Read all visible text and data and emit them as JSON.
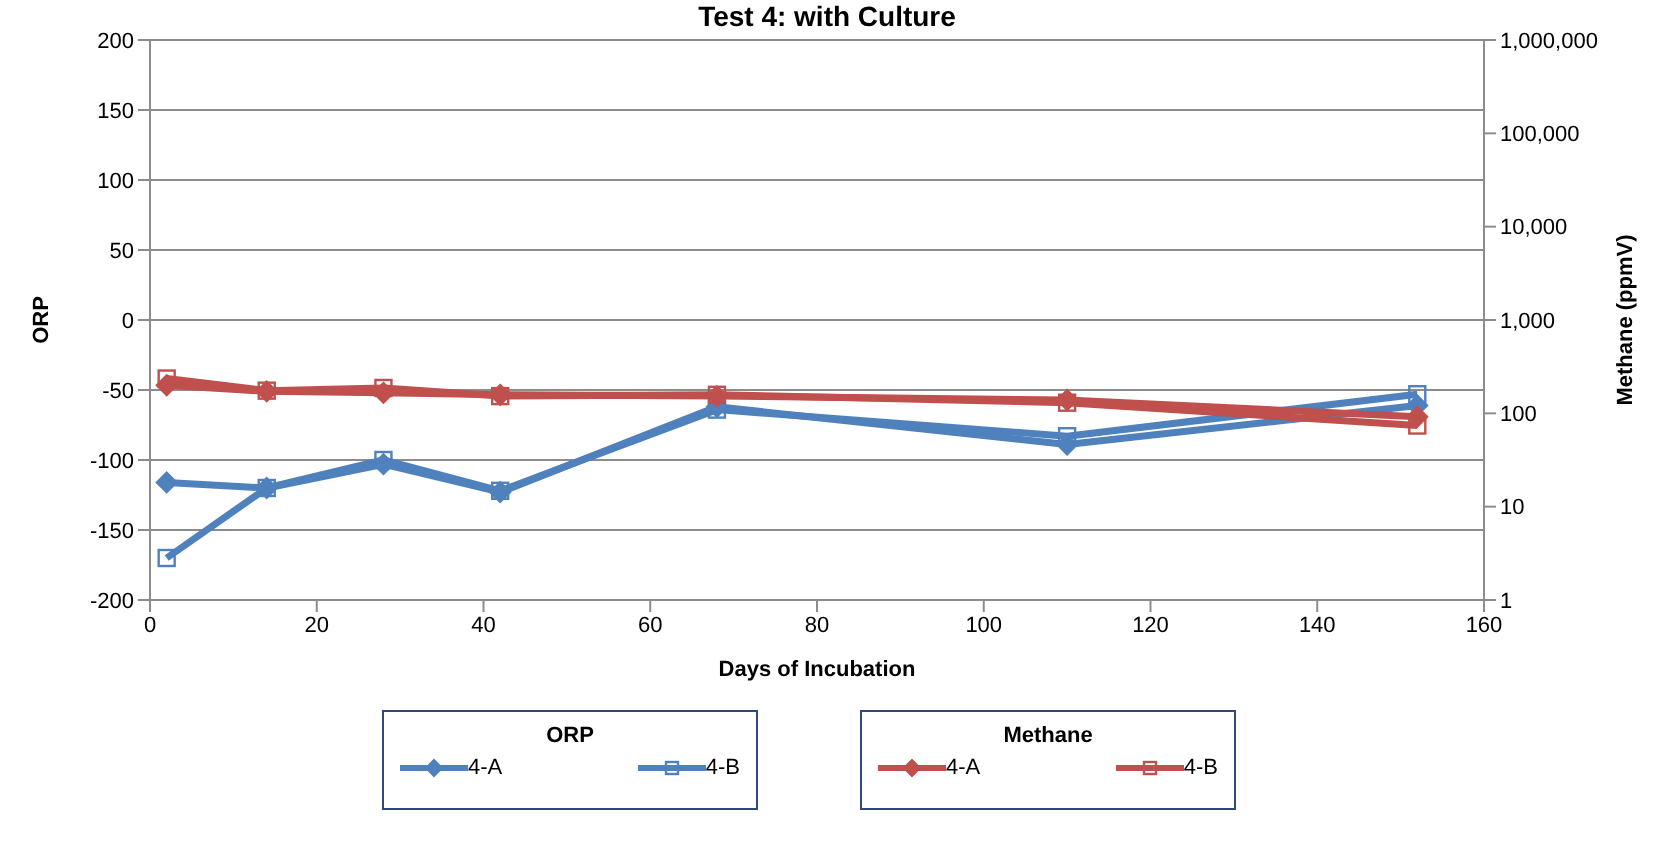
{
  "chart_data": {
    "type": "line",
    "title": "Test 4: with Culture",
    "xlabel": "Days of Incubation",
    "ylabel": "ORP",
    "y2label": "Methane (ppmV)",
    "x": [
      2,
      14,
      28,
      42,
      68,
      110,
      152
    ],
    "annotations": [
      "ORP",
      "Methane"
    ],
    "series": [
      {
        "name": "4-A",
        "color": "#4f81bd",
        "marker": "diamond",
        "values": [
          -116,
          -120,
          -103,
          -123,
          -62,
          -89,
          -61
        ]
      },
      {
        "name": "4-B",
        "color": "#4f81bd",
        "marker": "square",
        "values": [
          -170,
          -120,
          -100,
          -122,
          -64,
          -83,
          -53
        ]
      },
      {
        "name": "4-A",
        "color": "#c0504d",
        "marker": "diamond",
        "axis": "y2",
        "values": [
          200,
          172,
          166,
          158,
          153,
          139,
          92
        ]
      },
      {
        "name": "4-B",
        "color": "#c0504d",
        "marker": "square",
        "axis": "y2",
        "values": [
          236,
          175,
          187,
          153,
          158,
          130,
          74
        ]
      }
    ],
    "xlim": [
      0,
      160
    ],
    "xticks": [
      0,
      20,
      40,
      60,
      80,
      100,
      120,
      140,
      160
    ],
    "ylim": [
      -200,
      200
    ],
    "yticks": [
      -200,
      -150,
      -100,
      -50,
      0,
      50,
      100,
      150,
      200
    ],
    "y2lim": [
      1,
      1000000
    ],
    "y2ticks": [
      1,
      10,
      100,
      {
        "value": 1000,
        "label": "1,000"
      },
      {
        "value": 10000,
        "label": "10,000"
      },
      {
        "value": 100000,
        "label": "100,000"
      },
      {
        "value": 1000000,
        "label": "1,000,000"
      }
    ],
    "log": "y2",
    "grid": "y",
    "legend": "bottom"
  }
}
